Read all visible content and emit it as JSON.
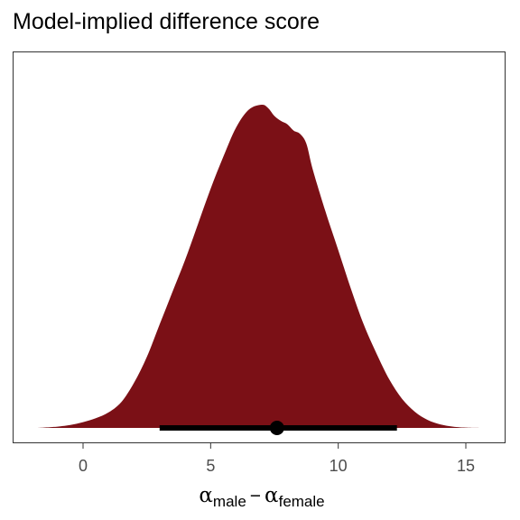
{
  "chart_data": {
    "type": "area",
    "title": "Model-implied difference score",
    "xlabel": {
      "greek": "α",
      "sub1": "male",
      "operator": "−",
      "sub2": "female"
    },
    "ylabel": "",
    "xlim": [
      -2.0,
      15.8
    ],
    "x_ticks": [
      0,
      5,
      10,
      15
    ],
    "x_tick_labels": [
      "0",
      "5",
      "10",
      "15"
    ],
    "y_ticks_shown": false,
    "grid": false,
    "legend": "none",
    "fill_color": "#7b1016",
    "interval_color": "#000000",
    "density": {
      "x": [
        -1.8,
        -1.0,
        -0.5,
        0.0,
        0.5,
        1.0,
        1.5,
        2.0,
        2.5,
        3.0,
        3.5,
        4.0,
        4.5,
        5.0,
        5.5,
        6.0,
        6.5,
        7.0,
        7.25,
        7.5,
        7.75,
        8.0,
        8.25,
        8.5,
        8.75,
        9.0,
        9.5,
        10.0,
        10.5,
        11.0,
        11.5,
        12.0,
        12.5,
        13.0,
        13.5,
        14.0,
        14.5,
        15.0,
        15.7
      ],
      "y": [
        0.0,
        0.004,
        0.009,
        0.018,
        0.03,
        0.048,
        0.08,
        0.14,
        0.22,
        0.32,
        0.42,
        0.52,
        0.63,
        0.74,
        0.84,
        0.93,
        0.985,
        1.0,
        0.99,
        0.965,
        0.95,
        0.94,
        0.92,
        0.91,
        0.88,
        0.8,
        0.67,
        0.55,
        0.43,
        0.32,
        0.23,
        0.15,
        0.09,
        0.05,
        0.025,
        0.011,
        0.004,
        0.001,
        0.0
      ]
    },
    "interval": {
      "point": 7.6,
      "lower": 3.0,
      "upper": 12.3
    }
  }
}
